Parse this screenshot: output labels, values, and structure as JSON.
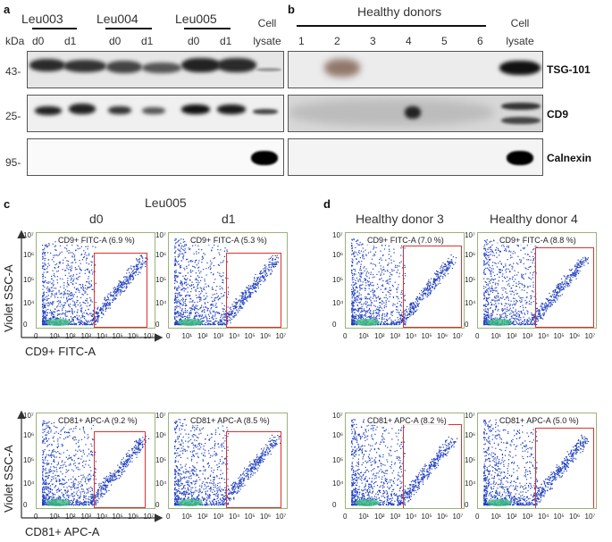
{
  "panel_a": {
    "letter": "a",
    "kda_label": "kDa",
    "groups": [
      {
        "name": "Leu003",
        "lanes": [
          "d0",
          "d1"
        ]
      },
      {
        "name": "Leu004",
        "lanes": [
          "d0",
          "d1"
        ]
      },
      {
        "name": "Leu005",
        "lanes": [
          "d0",
          "d1"
        ]
      }
    ],
    "cell_lysate": [
      "Cell",
      "lysate"
    ],
    "markers": [
      "43-",
      "25-",
      "95-"
    ]
  },
  "panel_b": {
    "letter": "b",
    "title": "Healthy donors",
    "lanes": [
      "1",
      "2",
      "3",
      "4",
      "5",
      "6"
    ],
    "cell_lysate": [
      "Cell",
      "lysate"
    ],
    "proteins": [
      "TSG-101",
      "CD9",
      "Calnexin"
    ]
  },
  "panel_c": {
    "letter": "c",
    "title": "Leu005",
    "col_labels": [
      "d0",
      "d1"
    ],
    "y_axis_title": "Violet SSC-A",
    "x_axis_titles": [
      "CD9+ FITC-A",
      "CD81+ APC-A"
    ],
    "gates": [
      [
        "CD9+ FITC-A (6.9 %)",
        "CD9+ FITC-A (5.3 %)"
      ],
      [
        "CD81+ APC-A (9.2 %)",
        "CD81+ APC-A (8.5 %)"
      ]
    ]
  },
  "panel_d": {
    "letter": "d",
    "col_labels": [
      "Healthy donor 3",
      "Healthy donor 4"
    ],
    "gates": [
      [
        "CD9+ FITC-A (7.0 %)",
        "CD9+ FITC-A (8.8 %)"
      ],
      [
        "CD81+ APC-A (8.2 %)",
        "CD81+ APC-A (5.0 %)"
      ]
    ]
  },
  "axes": {
    "x_ticks": [
      "0",
      "10¹",
      "10²",
      "10³",
      "10⁴",
      "10⁵",
      "10⁶",
      "10⁷"
    ],
    "y_ticks": [
      "10⁷",
      "10⁶",
      "10⁵",
      "10⁴",
      "0"
    ]
  },
  "colors": {
    "gate": "#e03030",
    "dots": "#1f3fbf",
    "dense": "#3fbf7f",
    "plot_border": "#9ab37a"
  }
}
